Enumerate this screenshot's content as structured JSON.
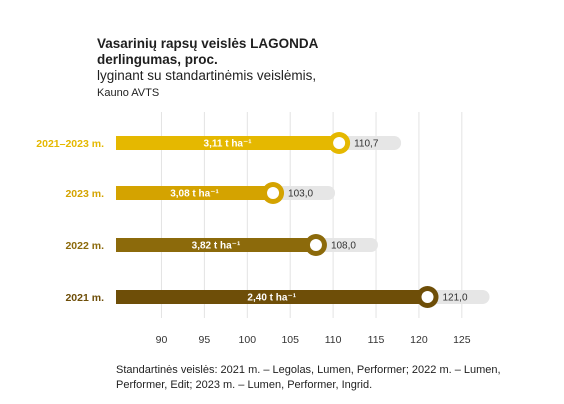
{
  "chart_data": {
    "type": "bar",
    "orientation": "horizontal",
    "title_line1": "Vasarinių rapsų veislės LAGONDA",
    "title_line2": "derlingumas, proc.",
    "subtitle": "lyginant su standartinėmis veislėmis,",
    "subtitle2": "Kauno AVTS",
    "categories": [
      "2021–2023 m.",
      "2023 m.",
      "2022 m.",
      "2021 m."
    ],
    "values": [
      110.7,
      103.0,
      108.0,
      121.0
    ],
    "value_labels": [
      "110,7",
      "103,0",
      "108,0",
      "121,0"
    ],
    "bar_labels": [
      "3,11 t ha⁻¹",
      "3,08 t ha⁻¹",
      "3,82 t ha⁻¹",
      "2,40 t ha⁻¹"
    ],
    "x_ticks": [
      90,
      95,
      100,
      105,
      110,
      115,
      120,
      125
    ],
    "xlim": [
      84.7,
      127
    ],
    "grid": true,
    "colors": [
      "#e5b800",
      "#d4a300",
      "#8c6a0b",
      "#6e4e08"
    ],
    "footnote": "Standartinės veislės: 2021 m. – Legolas, Lumen, Performer; 2022 m. – Lumen, Performer, Edit; 2023 m. – Lumen, Performer, Ingrid."
  }
}
